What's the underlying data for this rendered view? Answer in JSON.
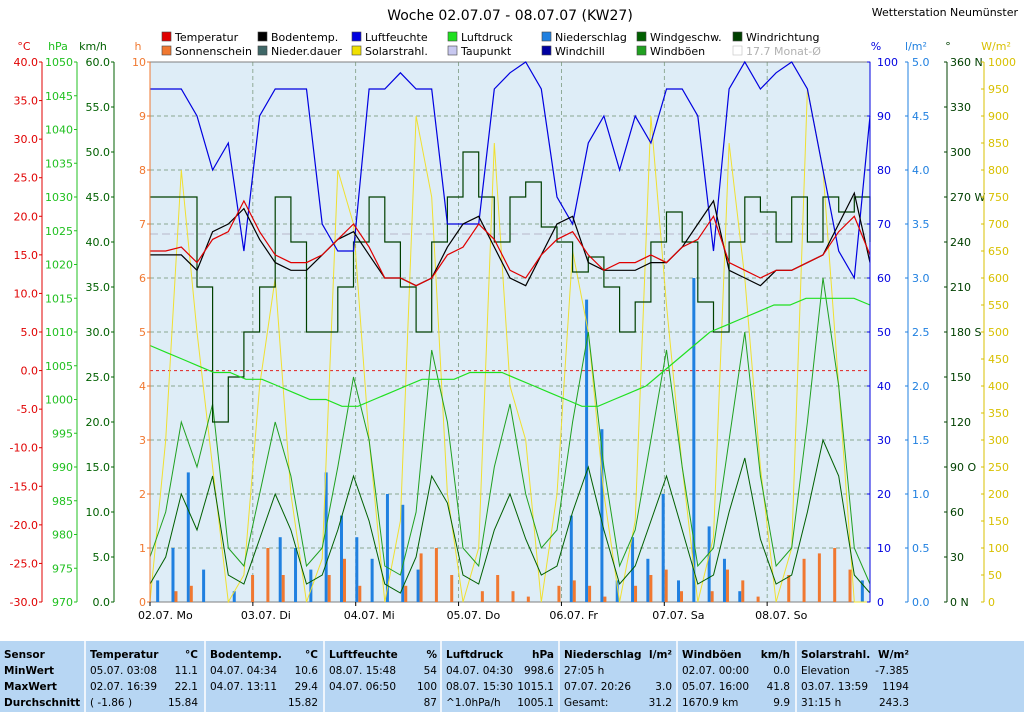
{
  "title": "Woche 02.07.07 - 08.07.07 (KW27)",
  "station": "Wetterstation Neumünster",
  "legend": [
    {
      "label": "Temperatur",
      "color": "#e00000"
    },
    {
      "label": "Sonnenschein",
      "color": "#f07830"
    },
    {
      "label": "Bodentemp.",
      "color": "#000000"
    },
    {
      "label": "Nieder.dauer",
      "color": "#406868"
    },
    {
      "label": "Luftfeuchte",
      "color": "#0000e0"
    },
    {
      "label": "Solarstrahl.",
      "color": "#f0e000"
    },
    {
      "label": "Luftdruck",
      "color": "#20e020"
    },
    {
      "label": "Taupunkt",
      "color": "#c8c8f0"
    },
    {
      "label": "Niederschlag",
      "color": "#2080e0"
    },
    {
      "label": "Windchill",
      "color": "#0000a0"
    },
    {
      "label": "Windgeschw.",
      "color": "#006000"
    },
    {
      "label": "Windböen",
      "color": "#20a020"
    },
    {
      "label": "Windrichtung",
      "color": "#004000"
    },
    {
      "label": "17.7 Monat-Ø",
      "color": "#c0c0c0"
    }
  ],
  "axis_units": {
    "temp": "°C",
    "pressure": "hPa",
    "wind": "km/h",
    "hours": "h",
    "humidity": "%",
    "rain": "l/m²",
    "direction": "°",
    "solar": "W/m²"
  },
  "chart_data": {
    "type": "line",
    "x_ticks": [
      "02.07. Mo",
      "03.07. Di",
      "04.07. Mi",
      "05.07. Do",
      "06.07. Fr",
      "07.07. Sa",
      "08.07. So"
    ],
    "axes": {
      "temp": {
        "min": -30,
        "max": 40,
        "ticks": [
          "40.0",
          "35.0",
          "30.0",
          "25.0",
          "20.0",
          "15.0",
          "10.0",
          "5.0",
          "0.0",
          "-5.0",
          "-10.0",
          "-15.0",
          "-20.0",
          "-25.0",
          "-30.0"
        ]
      },
      "pressure": {
        "min": 970,
        "max": 1050,
        "ticks": [
          "1050",
          "1045",
          "1040",
          "1035",
          "1030",
          "1025",
          "1020",
          "1015",
          "1010",
          "1005",
          "1000",
          "995",
          "990",
          "985",
          "980",
          "975",
          "970"
        ]
      },
      "wind": {
        "min": 0,
        "max": 60,
        "ticks": [
          "60.0",
          "55.0",
          "50.0",
          "45.0",
          "40.0",
          "35.0",
          "30.0",
          "25.0",
          "20.0",
          "15.0",
          "10.0",
          "5.0",
          "0.0"
        ]
      },
      "hours": {
        "min": 0,
        "max": 10,
        "ticks": [
          "10",
          "9",
          "8",
          "7",
          "6",
          "5",
          "4",
          "3",
          "2",
          "1",
          "0"
        ]
      },
      "humidity": {
        "min": 0,
        "max": 100,
        "ticks": [
          "100",
          "90",
          "80",
          "70",
          "60",
          "50",
          "40",
          "30",
          "20",
          "10",
          "0"
        ]
      },
      "rain": {
        "min": 0,
        "max": 5,
        "ticks": [
          "5.0",
          "4.5",
          "4.0",
          "3.5",
          "3.0",
          "2.5",
          "2.0",
          "1.5",
          "1.0",
          "0.5",
          "0.0"
        ]
      },
      "direction": {
        "min": 0,
        "max": 360,
        "ticks": [
          "360 N",
          "330",
          "300",
          "270 W",
          "240",
          "210",
          "180 S",
          "150",
          "120",
          "90 O",
          "60",
          "30",
          "0 N"
        ]
      },
      "solar": {
        "min": 0,
        "max": 1000,
        "ticks": [
          "1000",
          "950",
          "900",
          "850",
          "800",
          "750",
          "700",
          "650",
          "600",
          "550",
          "500",
          "450",
          "400",
          "350",
          "300",
          "250",
          "200",
          "150",
          "100",
          "50",
          "0"
        ]
      }
    },
    "temperature": [
      15.5,
      15.5,
      16,
      14,
      17,
      18,
      22,
      18,
      15,
      14,
      14,
      15,
      17,
      19,
      16,
      12,
      12,
      11,
      12,
      15,
      16,
      19,
      17,
      13,
      12,
      15,
      17,
      18,
      15,
      13,
      14,
      14,
      15,
      14,
      16,
      17,
      20,
      14,
      13,
      12,
      13,
      13,
      14,
      15,
      18,
      20,
      15
    ],
    "ground_temp": [
      15,
      15,
      15,
      13,
      18,
      19,
      21,
      17,
      14,
      13,
      13,
      15,
      17,
      18,
      15,
      12,
      12,
      11,
      12,
      16,
      19,
      20,
      16,
      12,
      11,
      15,
      19,
      20,
      14,
      13,
      13,
      13,
      14,
      14,
      16,
      19,
      22,
      13,
      12,
      11,
      13,
      13,
      14,
      15,
      19,
      23,
      14
    ],
    "humidity": [
      95,
      95,
      95,
      90,
      80,
      85,
      65,
      90,
      95,
      95,
      95,
      70,
      65,
      65,
      95,
      95,
      98,
      95,
      95,
      70,
      70,
      70,
      95,
      98,
      100,
      95,
      75,
      70,
      85,
      90,
      80,
      90,
      85,
      95,
      95,
      90,
      65,
      95,
      100,
      95,
      98,
      100,
      95,
      80,
      65,
      60,
      90
    ],
    "pressure": [
      1008,
      1007,
      1006,
      1005,
      1004,
      1004,
      1003,
      1003,
      1002,
      1001,
      1000,
      1000,
      999,
      999,
      1000,
      1001,
      1002,
      1003,
      1003,
      1003,
      1004,
      1004,
      1004,
      1003,
      1002,
      1001,
      1000,
      999,
      999,
      1000,
      1001,
      1002,
      1004,
      1006,
      1008,
      1010,
      1011,
      1012,
      1013,
      1014,
      1014,
      1015,
      1015,
      1015,
      1015,
      1014
    ],
    "solar": [
      0,
      300,
      800,
      500,
      250,
      0,
      50,
      400,
      600,
      200,
      0,
      80,
      800,
      700,
      300,
      0,
      150,
      900,
      750,
      200,
      0,
      100,
      850,
      400,
      300,
      0,
      200,
      650,
      500,
      200,
      0,
      150,
      900,
      550,
      250,
      0,
      120,
      850,
      600,
      250,
      0,
      100,
      950,
      800,
      400,
      0,
      0
    ],
    "wind_speed": [
      2,
      5,
      12,
      8,
      14,
      3,
      2,
      7,
      12,
      8,
      2,
      3,
      8,
      14,
      9,
      2,
      1,
      5,
      14,
      11,
      3,
      2,
      8,
      12,
      7,
      3,
      4,
      10,
      15,
      8,
      2,
      4,
      9,
      14,
      8,
      2,
      3,
      10,
      16,
      7,
      2,
      3,
      10,
      18,
      14,
      3,
      1
    ],
    "wind_gust": [
      5,
      10,
      20,
      15,
      22,
      6,
      4,
      12,
      20,
      14,
      4,
      6,
      15,
      25,
      18,
      4,
      3,
      10,
      28,
      20,
      6,
      4,
      15,
      22,
      12,
      6,
      8,
      20,
      30,
      15,
      4,
      8,
      18,
      28,
      15,
      4,
      6,
      18,
      30,
      14,
      4,
      6,
      20,
      36,
      24,
      6,
      2
    ],
    "wind_dir": [
      270,
      270,
      270,
      210,
      120,
      150,
      180,
      210,
      270,
      240,
      180,
      180,
      210,
      240,
      270,
      240,
      210,
      180,
      240,
      270,
      300,
      270,
      240,
      270,
      280,
      250,
      240,
      220,
      230,
      210,
      180,
      200,
      240,
      260,
      240,
      200,
      180,
      240,
      270,
      260,
      240,
      270,
      240,
      270,
      260,
      270,
      240
    ],
    "rain": [
      0.2,
      0.5,
      1.2,
      0.3,
      0,
      0.1,
      0,
      0,
      0.6,
      0.5,
      0.3,
      1.2,
      0.8,
      0.6,
      0.4,
      1.0,
      0.9,
      0.3,
      0,
      0,
      0,
      0,
      0,
      0,
      0,
      0,
      0,
      0.8,
      2.8,
      1.6,
      0.2,
      0.6,
      0.4,
      1.0,
      0.2,
      3.0,
      0.7,
      0.4,
      0.1,
      0,
      0,
      0,
      0,
      0,
      0,
      0,
      0.2
    ],
    "sunshine": [
      0,
      0.2,
      0.3,
      0,
      0,
      0,
      0.5,
      1.0,
      0.5,
      0,
      0,
      0.5,
      0.8,
      0.3,
      0,
      0,
      0.3,
      0.9,
      1.0,
      0.5,
      0,
      0.2,
      0.5,
      0.2,
      0.1,
      0,
      0.3,
      0.4,
      0.3,
      0.1,
      0,
      0.3,
      0.5,
      0.6,
      0.2,
      0,
      0.2,
      0.6,
      0.4,
      0.1,
      0,
      0.5,
      0.8,
      0.9,
      1.0,
      0.6,
      0
    ],
    "monthly_avg": 17.7
  },
  "stats": {
    "labels": {
      "sensor": "Sensor",
      "min": "MinWert",
      "max": "MaxWert",
      "avg": "Durchschnitt"
    },
    "columns": [
      {
        "name": "Temperatur",
        "unit": "°C",
        "min_date": "05.07.",
        "min_time": "03:08",
        "min": "11.1",
        "max_date": "02.07.",
        "max_time": "16:39",
        "max": "22.1",
        "avg_left": "( -1.86 )",
        "avg": "15.84"
      },
      {
        "name": "Bodentemp.",
        "unit": "°C",
        "min_date": "04.07.",
        "min_time": "04:34",
        "min": "10.6",
        "max_date": "04.07.",
        "max_time": "13:11",
        "max": "29.4",
        "avg_left": "",
        "avg": "15.82"
      },
      {
        "name": "Luftfeuchte",
        "unit": "%",
        "min_date": "08.07.",
        "min_time": "15:48",
        "min": "54",
        "max_date": "04.07.",
        "max_time": "06:50",
        "max": "100",
        "avg_left": "",
        "avg": "87"
      },
      {
        "name": "Luftdruck",
        "unit": "hPa",
        "min_date": "04.07.",
        "min_time": "04:30",
        "min": "998.6",
        "max_date": "08.07.",
        "max_time": "15:30",
        "max": "1015.1",
        "avg_left": "^1.0hPa/h",
        "avg": "1005.1"
      },
      {
        "name": "Niederschlag",
        "unit": "l/m²",
        "min_date": "27:05 h",
        "min_time": "",
        "min": "",
        "max_date": "07.07.",
        "max_time": "20:26",
        "max": "3.0",
        "avg_left": "Gesamt:",
        "avg": "31.2"
      },
      {
        "name": "Windböen",
        "unit": "km/h",
        "min_date": "02.07.",
        "min_time": "00:00",
        "min": "0.0",
        "max_date": "05.07.",
        "max_time": "16:00",
        "max": "41.8",
        "avg_left": "1670.9 km",
        "avg": "9.9"
      },
      {
        "name": "Solarstrahl.",
        "unit": "W/m²",
        "min_date": "Elevation",
        "min_time": "",
        "min": "-7.385",
        "max_date": "03.07.",
        "max_time": "13:59",
        "max": "1194",
        "avg_left": "31:15 h",
        "avg": "243.3"
      }
    ]
  }
}
